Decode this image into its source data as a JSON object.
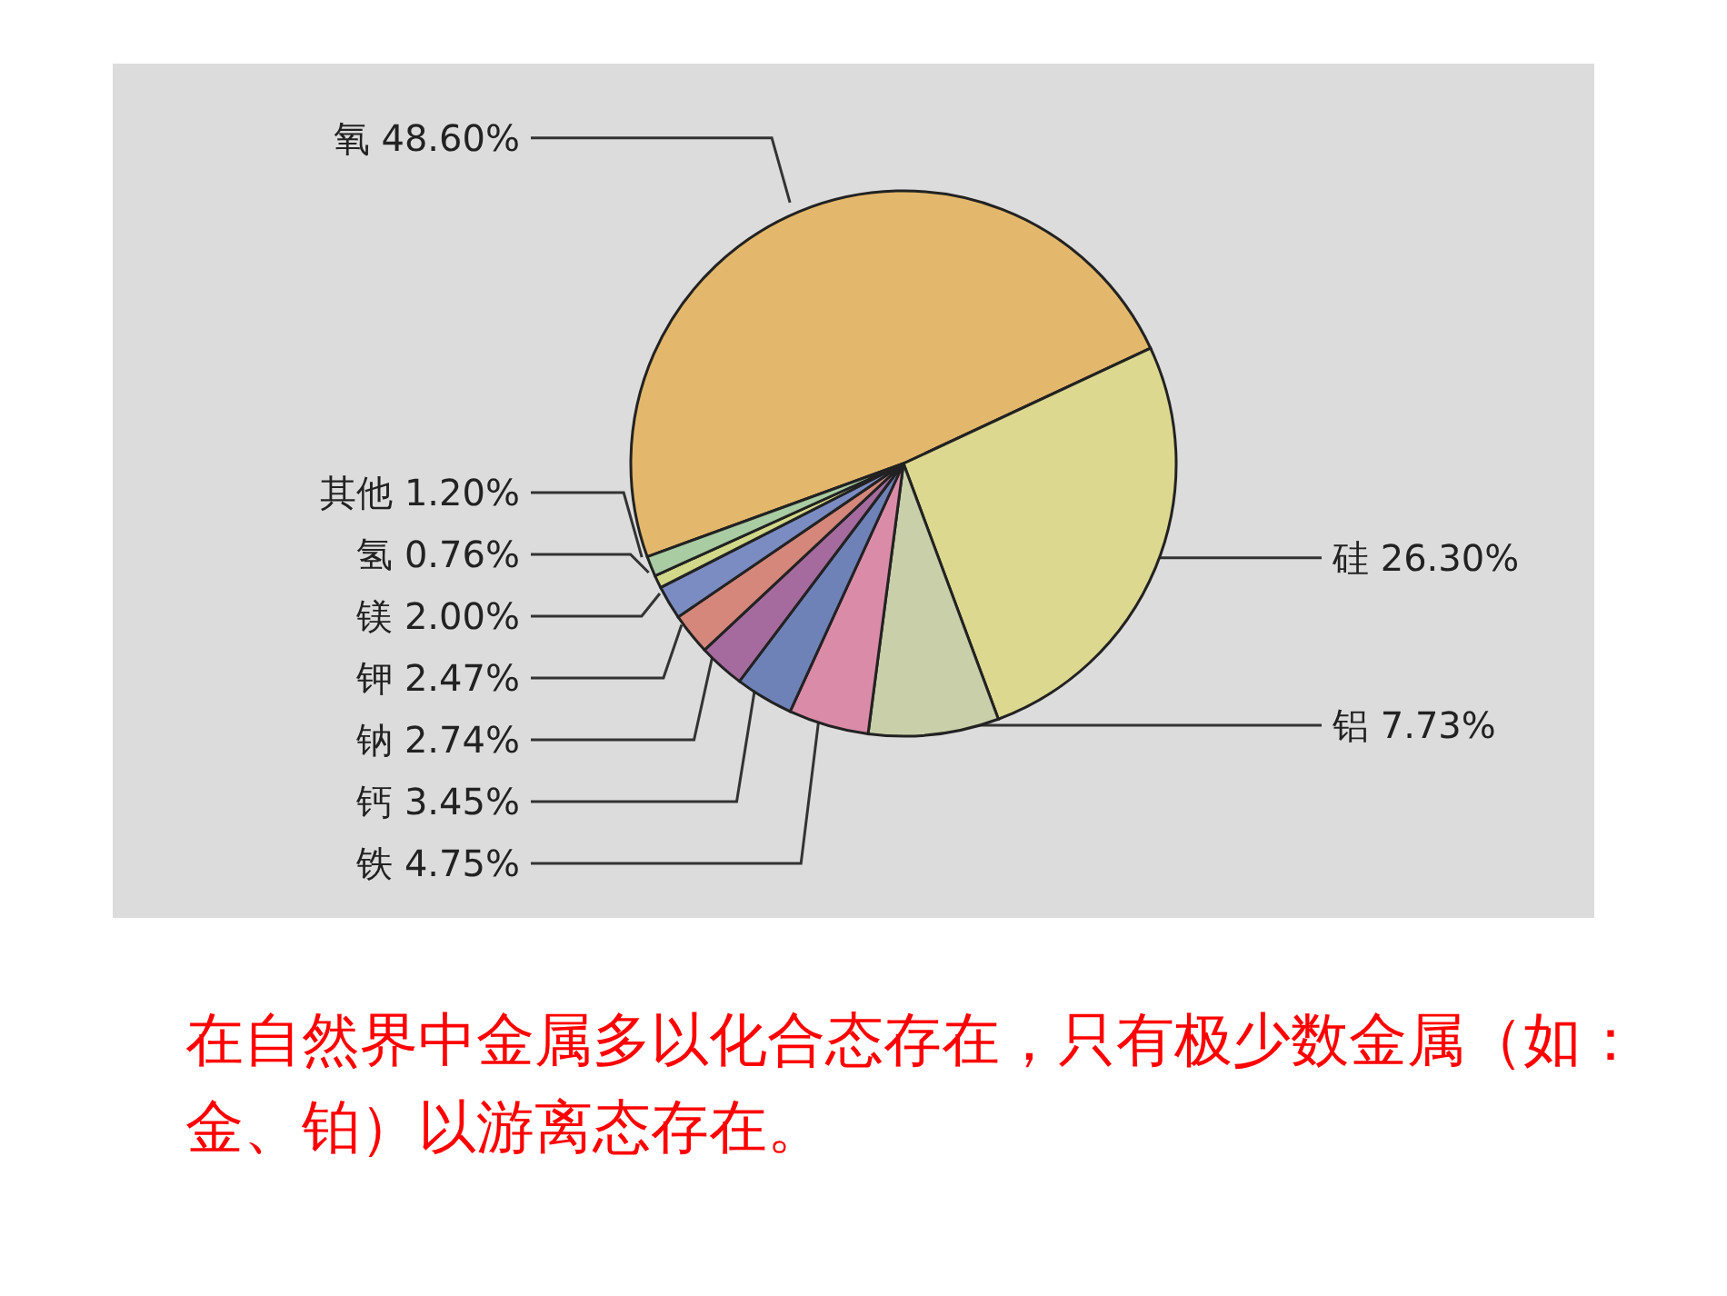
{
  "chart_data": {
    "type": "pie",
    "categories": [
      "氧",
      "硅",
      "铝",
      "铁",
      "钙",
      "钠",
      "钾",
      "镁",
      "氢",
      "其他"
    ],
    "values": [
      48.6,
      26.3,
      7.73,
      4.75,
      3.45,
      2.74,
      2.47,
      2.0,
      0.76,
      1.2
    ],
    "value_labels": [
      "48.60%",
      "26.30%",
      "7.73%",
      "4.75%",
      "3.45%",
      "2.74%",
      "2.47%",
      "2.00%",
      "0.76%",
      "1.20%"
    ],
    "colors": [
      "#e3b86c",
      "#dcd890",
      "#c9cfa9",
      "#d98ba7",
      "#6f82b8",
      "#a56b9e",
      "#d4877a",
      "#7b8cc2",
      "#d2d88a",
      "#a9cca3"
    ],
    "annotations": [
      "在自然界中金属多以化合态存在，只有极少数金属（如：金、铂）以游离态存在。"
    ]
  }
}
